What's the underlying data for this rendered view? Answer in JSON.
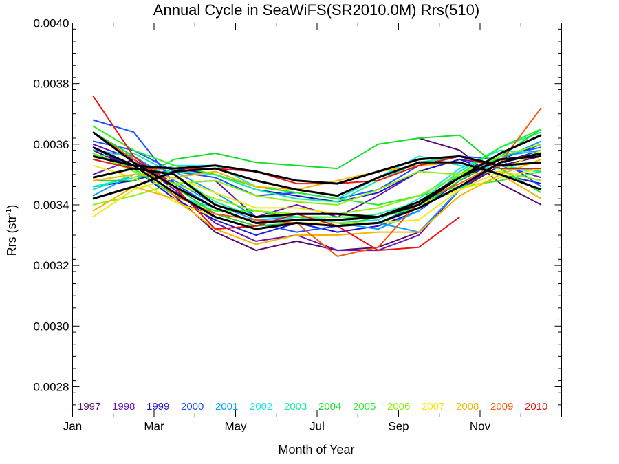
{
  "chart_data": {
    "type": "line",
    "title": "Annual Cycle in SeaWiFS(SR2010.0M) Rrs(510)",
    "xlabel": "Month of Year",
    "ylabel_main": "Rrs (str",
    "ylabel_sup": "-1",
    "ylabel_tail": ")",
    "xlim": [
      0,
      12
    ],
    "ylim": [
      0.0027,
      0.004
    ],
    "x_ticks": [
      {
        "value": 0,
        "label": "Jan"
      },
      {
        "value": 2,
        "label": "Mar"
      },
      {
        "value": 4,
        "label": "May"
      },
      {
        "value": 6,
        "label": "Jul"
      },
      {
        "value": 8,
        "label": "Sep"
      },
      {
        "value": 10,
        "label": "Nov"
      }
    ],
    "y_ticks": [
      {
        "value": 0.0028,
        "label": "0.0028"
      },
      {
        "value": 0.003,
        "label": "0.0030"
      },
      {
        "value": 0.0032,
        "label": "0.0032"
      },
      {
        "value": 0.0034,
        "label": "0.0034"
      },
      {
        "value": 0.0036,
        "label": "0.0036"
      },
      {
        "value": 0.0038,
        "label": "0.0038"
      },
      {
        "value": 0.004,
        "label": "0.0040"
      }
    ],
    "grid": false,
    "legend_position": "bottom",
    "x": [
      0.5,
      1.5,
      2.5,
      3.5,
      4.5,
      5.5,
      6.5,
      7.5,
      8.5,
      9.5,
      10.5,
      11.5
    ],
    "series": [
      {
        "name": "1997",
        "color": "#5a0a6e",
        "lines": [
          [
            null,
            null,
            null,
            null,
            null,
            null,
            null,
            null,
            0.00362,
            0.00358,
            0.00347,
            0.0034
          ],
          [
            0.00358,
            0.00352,
            0.00343,
            0.00331,
            0.00325,
            0.00328,
            0.00325,
            0.00326,
            0.00331,
            0.00345,
            0.00353,
            0.00356
          ]
        ]
      },
      {
        "name": "1998",
        "color": "#6a14b4",
        "lines": [
          [
            0.0035,
            0.00355,
            0.00347,
            0.00348,
            0.00336,
            0.0034,
            0.00336,
            0.00343,
            0.00351,
            0.00355,
            0.00353,
            0.00349
          ],
          [
            0.0036,
            0.00355,
            0.00345,
            0.00334,
            0.00328,
            0.0033,
            0.00325,
            0.00325,
            0.0033,
            0.00345,
            0.00354,
            0.00358
          ]
        ]
      },
      {
        "name": "1999",
        "color": "#1a14d2",
        "lines": [
          [
            0.00359,
            0.00352,
            0.00342,
            0.00335,
            0.0033,
            0.00334,
            0.00331,
            0.00333,
            0.00338,
            0.00348,
            0.00355,
            0.0036
          ],
          [
            0.00346,
            0.00348,
            0.00352,
            0.0035,
            0.00345,
            0.00343,
            0.00341,
            0.00344,
            0.00351,
            0.00355,
            0.0035,
            0.00347
          ]
        ]
      },
      {
        "name": "2000",
        "color": "#1a50ff",
        "lines": [
          [
            0.00368,
            0.00364,
            0.00347,
            0.00339,
            0.00334,
            0.00331,
            0.00333,
            0.00334,
            0.0034,
            0.0035,
            0.00356,
            0.00359
          ],
          [
            0.00361,
            0.00358,
            0.00351,
            0.00349,
            0.00343,
            0.00344,
            0.00342,
            0.00345,
            0.00353,
            0.00356,
            0.00355,
            0.00346
          ]
        ]
      },
      {
        "name": "2001",
        "color": "#0aa0ff",
        "lines": [
          [
            0.00343,
            0.0035,
            0.00351,
            0.00344,
            0.00336,
            0.00336,
            0.00334,
            0.00332,
            0.00338,
            0.0035,
            0.00355,
            0.00361
          ],
          [
            0.00358,
            0.00356,
            0.00348,
            0.0034,
            0.00335,
            0.00336,
            0.00334,
            0.00334,
            0.00331,
            0.00345,
            0.00356,
            0.00358
          ]
        ]
      },
      {
        "name": "2002",
        "color": "#18e6e6",
        "lines": [
          [
            0.00355,
            0.00352,
            0.00343,
            0.00339,
            0.00334,
            0.00336,
            0.00334,
            0.00335,
            0.00342,
            0.00352,
            0.00358,
            0.00357
          ],
          [
            0.00346,
            0.00349,
            0.00353,
            0.00353,
            0.00346,
            0.00344,
            0.00342,
            0.00349,
            0.00356,
            0.00353,
            0.00352,
            0.00351
          ]
        ]
      },
      {
        "name": "2003",
        "color": "#12f0a0",
        "lines": [
          [
            0.00356,
            0.00357,
            0.0035,
            0.00341,
            0.00336,
            0.00336,
            0.00335,
            0.00337,
            0.00341,
            0.00351,
            0.00359,
            0.00364
          ],
          [
            0.00345,
            0.0035,
            0.00351,
            0.0035,
            0.00345,
            0.00342,
            0.00341,
            0.00348,
            0.00354,
            0.00356,
            0.00353,
            0.00351
          ]
        ]
      },
      {
        "name": "2004",
        "color": "#14dc28",
        "lines": [
          [
            0.00364,
            0.00356,
            0.00346,
            0.00337,
            0.00333,
            0.00334,
            0.00333,
            0.00336,
            0.00339,
            0.00348,
            0.00356,
            0.00365
          ],
          [
            0.00348,
            0.00348,
            0.00355,
            0.00357,
            0.00354,
            0.00353,
            0.00352,
            0.0036,
            0.00362,
            0.00363,
            0.00352,
            0.00344
          ]
        ]
      },
      {
        "name": "2005",
        "color": "#28f028",
        "lines": [
          [
            0.00357,
            0.00352,
            0.00343,
            0.00338,
            0.00338,
            0.00336,
            0.00336,
            0.00336,
            0.00339,
            0.0035,
            0.00359,
            0.00365
          ],
          [
            0.00366,
            0.00358,
            0.00353,
            0.0035,
            0.00346,
            0.00344,
            0.00342,
            0.0034,
            0.00343,
            0.00346,
            0.00348,
            0.00351
          ]
        ]
      },
      {
        "name": "2006",
        "color": "#8cf00a",
        "lines": [
          [
            0.00357,
            0.00351,
            0.00347,
            0.00342,
            0.00338,
            0.00337,
            0.00337,
            0.00339,
            0.00343,
            0.0035,
            0.00356,
            0.0036
          ],
          [
            0.0034,
            0.00343,
            0.00347,
            0.00348,
            0.00343,
            0.00341,
            0.0034,
            0.00345,
            0.00351,
            0.0035,
            0.00351,
            0.00348
          ]
        ]
      },
      {
        "name": "2007",
        "color": "#ebeb12",
        "lines": [
          [
            0.00353,
            0.00349,
            0.00341,
            0.00336,
            0.00332,
            0.00334,
            0.00334,
            0.00334,
            0.00335,
            0.00345,
            0.00351,
            0.00358
          ],
          [
            0.00336,
            0.00345,
            0.00349,
            0.00344,
            0.00339,
            0.00339,
            0.00337,
            0.00336,
            0.0034,
            0.00345,
            0.00349,
            0.00352
          ]
        ]
      },
      {
        "name": "2008",
        "color": "#f5b400",
        "lines": [
          [
            0.00338,
            0.00346,
            0.00342,
            0.00332,
            0.00327,
            0.0033,
            0.0033,
            0.00331,
            0.00331,
            0.00343,
            0.0035,
            0.00355
          ],
          [
            0.00348,
            0.0035,
            0.00349,
            0.00351,
            0.00346,
            0.00345,
            0.00348,
            0.00351,
            0.00353,
            0.00354,
            0.0035,
            0.00342
          ]
        ]
      },
      {
        "name": "2009",
        "color": "#f55a0a",
        "lines": [
          [
            0.00364,
            0.00355,
            0.00343,
            0.00337,
            0.00335,
            0.00334,
            0.00323,
            0.00326,
            0.00341,
            0.00347,
            0.00354,
            0.00372
          ]
        ]
      },
      {
        "name": "2010",
        "color": "#eb1414",
        "lines": [
          [
            0.00376,
            0.00356,
            0.00346,
            0.00332,
            0.00333,
            0.00337,
            0.00333,
            0.00325,
            0.00326,
            0.00336,
            null,
            null
          ],
          [
            0.00355,
            0.00352,
            0.00352,
            0.00352,
            0.00351,
            0.00347,
            0.00347,
            0.00348,
            0.00353,
            0.00356,
            0.00352,
            0.00352
          ]
        ]
      }
    ],
    "mean_series": {
      "color": "#000000",
      "lines": [
        [
          0.00364,
          0.00354,
          0.00346,
          0.00339,
          0.00334,
          0.00335,
          0.00335,
          0.00336,
          0.00341,
          0.00349,
          0.00357,
          0.00363
        ],
        [
          0.00342,
          0.00346,
          0.00351,
          0.00352,
          0.00348,
          0.00345,
          0.00343,
          0.00349,
          0.00354,
          0.00354,
          0.0035,
          0.00345
        ],
        [
          0.00359,
          0.00353,
          0.00344,
          0.00336,
          0.00332,
          0.00334,
          0.00333,
          0.00334,
          0.00339,
          0.00346,
          0.00354,
          0.00357
        ],
        [
          0.00356,
          0.00353,
          0.00352,
          0.00353,
          0.00351,
          0.00348,
          0.00347,
          0.00351,
          0.00355,
          0.00356,
          0.00353,
          0.00354
        ],
        [
          0.00349,
          0.00352,
          0.0035,
          0.0034,
          0.00336,
          0.00337,
          0.00337,
          0.00336,
          0.0034,
          0.00349,
          0.00355,
          0.00356
        ]
      ]
    }
  }
}
